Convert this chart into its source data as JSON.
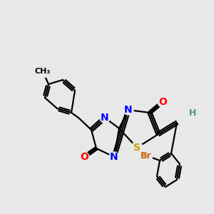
{
  "background_color": "#e8e8e8",
  "bond_color": "#000000",
  "bond_width": 1.6,
  "atom_colors": {
    "N": "#0000ff",
    "O": "#ff0000",
    "S": "#c8a000",
    "Br": "#c86400",
    "H": "#5a9090",
    "C": "#000000"
  },
  "font_size_atom": 10,
  "font_size_small": 8
}
